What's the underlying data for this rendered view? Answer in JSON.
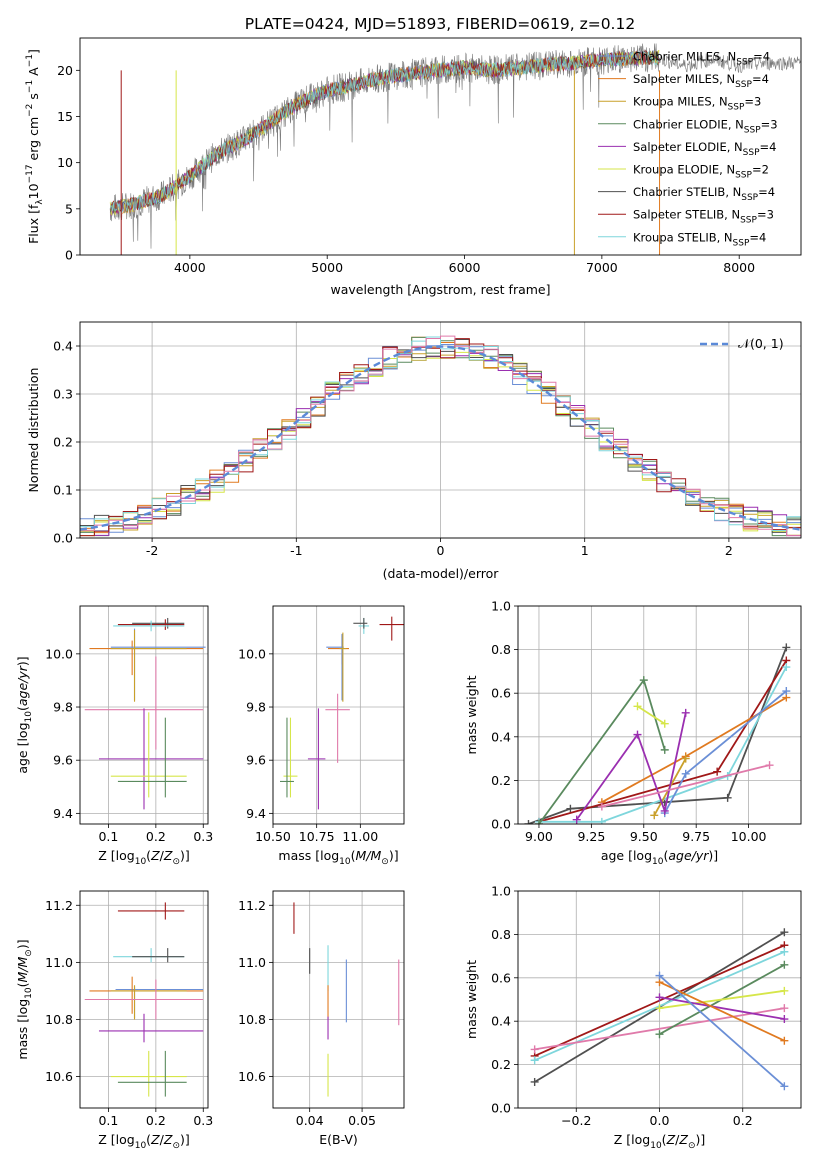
{
  "figure_title": "PLATE=0424, MJD=51893, FIBERID=0619, z=0.12",
  "colors": {
    "Chabrier MILES": "#6b8fd6",
    "Salpeter MILES": "#e07a20",
    "Kroupa MILES": "#c9a02a",
    "Chabrier ELODIE": "#5a8a5e",
    "Salpeter ELODIE": "#9a2fb0",
    "Kroupa ELODIE": "#d6e64a",
    "Chabrier STELIB": "#505050",
    "Salpeter STELIB": "#a01818",
    "Kroupa STELIB": "#7ed6dc",
    "pink": "#e07aaa",
    "grid": "#b0b0b0",
    "normal_curve": "#5b8ad8"
  },
  "chart_data": [
    {
      "id": "spectrum",
      "type": "line",
      "title": "PLATE=0424, MJD=51893, FIBERID=0619, z=0.12",
      "xlabel": "wavelength [Angstrom, rest frame]",
      "ylabel_main": "Flux [f",
      "ylabel_sub": "λ",
      "ylabel_mid": "10",
      "ylabel_sup1": "−17",
      "ylabel_mid2": " erg cm",
      "ylabel_sup2": "−2",
      "ylabel_mid3": " s",
      "ylabel_sup3": "−1",
      "ylabel_mid4": " A",
      "ylabel_sup4": "−1",
      "ylabel_end": "]",
      "xlim": [
        3200,
        8450
      ],
      "ylim": [
        0,
        23.5
      ],
      "xticks": [
        4000,
        5000,
        6000,
        7000,
        8000
      ],
      "yticks": [
        0,
        5,
        10,
        15,
        20
      ],
      "data_trend": {
        "x": [
          3420,
          3600,
          3800,
          4000,
          4200,
          4400,
          4600,
          4800,
          5000,
          5200,
          5400,
          5600,
          5800,
          6000,
          6200,
          6400,
          6600,
          6800,
          7000,
          7200,
          7420
        ],
        "y": [
          5,
          5.5,
          6.5,
          8.5,
          11,
          12.5,
          14.5,
          16.5,
          17.8,
          18.5,
          19.2,
          19.6,
          20,
          20.3,
          20,
          20.3,
          20.6,
          20.8,
          21.1,
          21.3,
          21.4
        ]
      },
      "data_tail": {
        "x": [
          7420,
          7600,
          7800,
          8000,
          8200,
          8450
        ],
        "y": [
          21.3,
          20.5,
          21.2,
          20.5,
          20.8,
          20.8
        ]
      },
      "legend": [
        {
          "label": "Chabrier MILES, N",
          "sub": "SSP",
          "suffix": "=4",
          "model": "Chabrier MILES"
        },
        {
          "label": "Salpeter MILES, N",
          "sub": "SSP",
          "suffix": "=4",
          "model": "Salpeter MILES"
        },
        {
          "label": "Kroupa MILES, N",
          "sub": "SSP",
          "suffix": "=3",
          "model": "Kroupa MILES"
        },
        {
          "label": "Chabrier ELODIE, N",
          "sub": "SSP",
          "suffix": "=3",
          "model": "Chabrier ELODIE"
        },
        {
          "label": "Salpeter ELODIE, N",
          "sub": "SSP",
          "suffix": "=4",
          "model": "Salpeter ELODIE"
        },
        {
          "label": "Kroupa ELODIE, N",
          "sub": "SSP",
          "suffix": "=2",
          "model": "Kroupa ELODIE"
        },
        {
          "label": "Chabrier STELIB, N",
          "sub": "SSP",
          "suffix": "=4",
          "model": "Chabrier STELIB"
        },
        {
          "label": "Salpeter STELIB, N",
          "sub": "SSP",
          "suffix": "=3",
          "model": "Salpeter STELIB"
        },
        {
          "label": "Kroupa STELIB, N",
          "sub": "SSP",
          "suffix": "=4",
          "model": "Kroupa STELIB"
        }
      ]
    },
    {
      "id": "residuals",
      "type": "histogram",
      "xlabel": "(data-model)/error",
      "ylabel": "Normed distribution",
      "xlim": [
        -2.5,
        2.5
      ],
      "ylim": [
        0,
        0.45
      ],
      "xticks": [
        -2,
        -1,
        0,
        1,
        2
      ],
      "yticks": [
        0.0,
        0.1,
        0.2,
        0.3,
        0.4
      ],
      "legend_label": "𝒩(0, 1)",
      "bin_width": 0.1
    },
    {
      "id": "z-age",
      "type": "scatter",
      "xlabel": "Z [log",
      "xlabel_sub": "10",
      "xlabel_rest": "(Z/Z",
      "xlabel_sun": "⊙",
      "xlabel_end": ")]",
      "ylabel": "age  [log",
      "ylabel_sub": "10",
      "ylabel_rest": "(age/yr)]",
      "xlim": [
        0.04,
        0.31
      ],
      "ylim": [
        9.36,
        10.18
      ],
      "xticks": [
        0.1,
        0.2,
        0.3
      ],
      "yticks": [
        9.4,
        9.6,
        9.8,
        10.0
      ],
      "points": [
        {
          "model": "Chabrier STELIB",
          "x": 0.225,
          "y": 10.115,
          "xerr": [
            0.075,
            0.035
          ],
          "yerr": [
            0.02,
            0.02
          ]
        },
        {
          "model": "Salpeter STELIB",
          "x": 0.22,
          "y": 10.11,
          "xerr": [
            0.1,
            0.04
          ],
          "yerr": [
            0.02,
            0.02
          ]
        },
        {
          "model": "Kroupa STELIB",
          "x": 0.19,
          "y": 10.105,
          "xerr": [
            0.08,
            0.07
          ],
          "yerr": [
            0.02,
            0.02
          ]
        },
        {
          "model": "Salpeter MILES",
          "x": 0.15,
          "y": 10.02,
          "xerr": [
            0.09,
            0.15
          ],
          "yerr": [
            0.1,
            0.03
          ]
        },
        {
          "model": "Chabrier MILES",
          "x": 0.155,
          "y": 10.025,
          "xerr": [
            0.05,
            0.15
          ],
          "yerr": [
            0.2,
            0.07
          ]
        },
        {
          "model": "Kroupa MILES",
          "x": 0.155,
          "y": 10.02,
          "xerr": [
            0.05,
            0.11
          ],
          "yerr": [
            0.2,
            0.07
          ]
        },
        {
          "model": "pink",
          "x": 0.2,
          "y": 9.79,
          "xerr": [
            0.15,
            0.1
          ],
          "yerr": [
            0.15,
            0.2
          ]
        },
        {
          "model": "Salpeter ELODIE",
          "x": 0.175,
          "y": 9.605,
          "xerr": [
            0.095,
            0.125
          ],
          "yerr": [
            0.19,
            0.19
          ]
        },
        {
          "model": "Kroupa ELODIE",
          "x": 0.185,
          "y": 9.54,
          "xerr": [
            0.08,
            0.08
          ],
          "yerr": [
            0.08,
            0.24
          ]
        },
        {
          "model": "Chabrier ELODIE",
          "x": 0.22,
          "y": 9.52,
          "xerr": [
            0.1,
            0.045
          ],
          "yerr": [
            0.06,
            0.24
          ]
        }
      ]
    },
    {
      "id": "mass-age",
      "type": "scatter",
      "xlabel": "mass [log",
      "xlabel_sub": "10",
      "xlabel_rest": "(M/M",
      "xlabel_sun": "⊙",
      "xlabel_end": ")]",
      "xlim": [
        10.5,
        11.25
      ],
      "ylim": [
        9.36,
        10.18
      ],
      "xticks": [
        10.5,
        10.75,
        11.0
      ],
      "xtick_labels": [
        "10.50",
        "10.75",
        "11.00"
      ],
      "yticks": [
        9.4,
        9.6,
        9.8,
        10.0
      ],
      "points": [
        {
          "model": "Salpeter STELIB",
          "x": 11.18,
          "y": 10.11,
          "xerr": [
            0.07,
            0.07
          ],
          "yerr": [
            0.06,
            0.03
          ]
        },
        {
          "model": "Kroupa STELIB",
          "x": 11.02,
          "y": 10.105,
          "xerr": [
            0.03,
            0.03
          ],
          "yerr": [
            0.03,
            0.03
          ]
        },
        {
          "model": "Chabrier STELIB",
          "x": 11.02,
          "y": 10.115,
          "xerr": [
            0.06,
            0.02
          ],
          "yerr": [
            0.02,
            0.02
          ]
        },
        {
          "model": "Salpeter MILES",
          "x": 10.895,
          "y": 10.02,
          "xerr": [
            0.08,
            0.04
          ],
          "yerr": [
            0.06,
            0.05
          ]
        },
        {
          "model": "Chabrier MILES",
          "x": 10.895,
          "y": 10.025,
          "xerr": [
            0.09,
            0.01
          ],
          "yerr": [
            0.2,
            0.05
          ]
        },
        {
          "model": "Kroupa MILES",
          "x": 10.9,
          "y": 10.02,
          "xerr": [
            0.02,
            0.02
          ],
          "yerr": [
            0.2,
            0.06
          ]
        },
        {
          "model": "pink",
          "x": 10.87,
          "y": 9.79,
          "xerr": [
            0.07,
            0.07
          ],
          "yerr": [
            0.2,
            0.06
          ]
        },
        {
          "model": "Salpeter ELODIE",
          "x": 10.76,
          "y": 9.605,
          "xerr": [
            0.06,
            0.04
          ],
          "yerr": [
            0.19,
            0.19
          ]
        },
        {
          "model": "Kroupa ELODIE",
          "x": 10.6,
          "y": 9.54,
          "xerr": [
            0.04,
            0.04
          ],
          "yerr": [
            0.08,
            0.22
          ]
        },
        {
          "model": "Chabrier ELODIE",
          "x": 10.58,
          "y": 9.52,
          "xerr": [
            0.04,
            0.04
          ],
          "yerr": [
            0.06,
            0.24
          ]
        }
      ]
    },
    {
      "id": "age-weight",
      "type": "line",
      "xlabel": "age  [log",
      "xlabel_sub": "10",
      "xlabel_rest": "(age/yr)]",
      "ylabel": "mass weight",
      "xlim": [
        8.9,
        10.25
      ],
      "ylim": [
        0,
        1.0
      ],
      "xticks": [
        9.0,
        9.25,
        9.5,
        9.75,
        10.0
      ],
      "xtick_labels": [
        "9.00",
        "9.25",
        "9.50",
        "9.75",
        "10.00"
      ],
      "yticks": [
        0.0,
        0.2,
        0.4,
        0.6,
        0.8,
        1.0
      ],
      "series": [
        {
          "model": "Chabrier STELIB",
          "x": [
            8.95,
            9.15,
            9.6,
            9.9,
            10.18
          ],
          "y": [
            0.0,
            0.07,
            0.1,
            0.12,
            0.81
          ]
        },
        {
          "model": "Salpeter STELIB",
          "x": [
            9.0,
            9.85,
            10.18
          ],
          "y": [
            0.01,
            0.24,
            0.75
          ]
        },
        {
          "model": "Kroupa STELIB",
          "x": [
            9.0,
            9.3,
            9.9,
            10.18
          ],
          "y": [
            0.01,
            0.01,
            0.22,
            0.72
          ]
        },
        {
          "model": "Salpeter MILES",
          "x": [
            9.3,
            9.7,
            10.18
          ],
          "y": [
            0.1,
            0.31,
            0.58
          ]
        },
        {
          "model": "Chabrier MILES",
          "x": [
            9.6,
            9.7,
            10.18
          ],
          "y": [
            0.05,
            0.23,
            0.61
          ]
        },
        {
          "model": "Kroupa MILES",
          "x": [
            9.55,
            9.7
          ],
          "y": [
            0.04,
            0.3
          ]
        },
        {
          "model": "Chabrier ELODIE",
          "x": [
            9.0,
            9.5,
            9.6
          ],
          "y": [
            0.0,
            0.66,
            0.34
          ]
        },
        {
          "model": "Salpeter ELODIE",
          "x": [
            9.18,
            9.47,
            9.6,
            9.7
          ],
          "y": [
            0.02,
            0.41,
            0.06,
            0.51
          ]
        },
        {
          "model": "Kroupa ELODIE",
          "x": [
            9.47,
            9.6
          ],
          "y": [
            0.54,
            0.46
          ]
        },
        {
          "model": "pink",
          "x": [
            9.3,
            10.1
          ],
          "y": [
            0.08,
            0.27
          ]
        }
      ]
    },
    {
      "id": "mass-z",
      "type": "scatter",
      "xlabel": "Z [log",
      "xlabel_sub": "10",
      "xlabel_rest": "(Z/Z",
      "xlabel_sun": "⊙",
      "xlabel_end": ")]",
      "ylabel": "mass [log",
      "ylabel_sub": "10",
      "ylabel_rest": "(M/M",
      "ylabel_sun": "⊙",
      "ylabel_end": ")]",
      "xlim": [
        0.04,
        0.31
      ],
      "ylim": [
        10.49,
        11.25
      ],
      "xticks": [
        0.1,
        0.2,
        0.3
      ],
      "yticks": [
        10.6,
        10.8,
        11.0,
        11.2
      ],
      "points": [
        {
          "model": "Salpeter STELIB",
          "x": 0.22,
          "y": 11.18,
          "xerr": [
            0.1,
            0.04
          ],
          "yerr": [
            0.03,
            0.03
          ]
        },
        {
          "model": "Kroupa STELIB",
          "x": 0.19,
          "y": 11.02,
          "xerr": [
            0.08,
            0.07
          ],
          "yerr": [
            0.02,
            0.03
          ]
        },
        {
          "model": "Chabrier STELIB",
          "x": 0.225,
          "y": 11.02,
          "xerr": [
            0.075,
            0.035
          ],
          "yerr": [
            0.02,
            0.03
          ]
        },
        {
          "model": "Chabrier MILES",
          "x": 0.155,
          "y": 10.905,
          "xerr": [
            0.04,
            0.145
          ],
          "yerr": [
            0.1,
            0.01
          ]
        },
        {
          "model": "Salpeter MILES",
          "x": 0.15,
          "y": 10.9,
          "xerr": [
            0.09,
            0.15
          ],
          "yerr": [
            0.08,
            0.05
          ]
        },
        {
          "model": "Kroupa MILES",
          "x": 0.155,
          "y": 10.9,
          "xerr": [
            0.05,
            0.11
          ],
          "yerr": [
            0.1,
            0.02
          ]
        },
        {
          "model": "pink",
          "x": 0.2,
          "y": 10.87,
          "xerr": [
            0.15,
            0.1
          ],
          "yerr": [
            0.07,
            0.07
          ]
        },
        {
          "model": "Salpeter ELODIE",
          "x": 0.175,
          "y": 10.76,
          "xerr": [
            0.095,
            0.125
          ],
          "yerr": [
            0.04,
            0.06
          ]
        },
        {
          "model": "Kroupa ELODIE",
          "x": 0.185,
          "y": 10.6,
          "xerr": [
            0.08,
            0.08
          ],
          "yerr": [
            0.07,
            0.09
          ]
        },
        {
          "model": "Chabrier ELODIE",
          "x": 0.22,
          "y": 10.58,
          "xerr": [
            0.1,
            0.045
          ],
          "yerr": [
            0.05,
            0.11
          ]
        }
      ]
    },
    {
      "id": "mass-ebv",
      "type": "scatter",
      "xlabel": "E(B-V)",
      "xlim": [
        0.033,
        0.058
      ],
      "ylim": [
        10.49,
        11.25
      ],
      "xticks": [
        0.04,
        0.05
      ],
      "xtick_labels": [
        "0.04",
        "0.05"
      ],
      "yticks": [
        10.6,
        10.8,
        11.0,
        11.2
      ],
      "points": [
        {
          "model": "Salpeter STELIB",
          "x": 0.037,
          "y": 11.18,
          "yerr": [
            0.08,
            0.03
          ]
        },
        {
          "model": "Chabrier STELIB",
          "x": 0.04,
          "y": 11.0,
          "yerr": [
            0.04,
            0.05
          ]
        },
        {
          "model": "Kroupa STELIB",
          "x": 0.0435,
          "y": 11.0,
          "yerr": [
            0.1,
            0.06
          ]
        },
        {
          "model": "Salpeter MILES",
          "x": 0.0435,
          "y": 10.88,
          "yerr": [
            0.08,
            0.04
          ]
        },
        {
          "model": "Salpeter ELODIE",
          "x": 0.0435,
          "y": 10.79,
          "yerr": [
            0.06,
            0.02
          ]
        },
        {
          "model": "Kroupa ELODIE",
          "x": 0.0435,
          "y": 10.6,
          "yerr": [
            0.07,
            0.08
          ]
        },
        {
          "model": "Chabrier MILES",
          "x": 0.047,
          "y": 10.88,
          "yerr": [
            0.09,
            0.13
          ]
        },
        {
          "model": "pink",
          "x": 0.057,
          "y": 10.9,
          "yerr": [
            0.12,
            0.11
          ]
        }
      ]
    },
    {
      "id": "z-weight",
      "type": "line",
      "xlabel": "Z [log",
      "xlabel_sub": "10",
      "xlabel_rest": "(Z/Z",
      "xlabel_sun": "⊙",
      "xlabel_end": ")]",
      "ylabel": "mass weight",
      "xlim": [
        -0.34,
        0.34
      ],
      "ylim": [
        0,
        1.0
      ],
      "xticks": [
        -0.2,
        0.0,
        0.2
      ],
      "xtick_labels": [
        "−0.2",
        "0.0",
        "0.2"
      ],
      "yticks": [
        0.0,
        0.2,
        0.4,
        0.6,
        0.8,
        1.0
      ],
      "series": [
        {
          "model": "Chabrier STELIB",
          "x": [
            -0.3,
            0.3
          ],
          "y": [
            0.12,
            0.81
          ]
        },
        {
          "model": "Salpeter STELIB",
          "x": [
            -0.3,
            0.3
          ],
          "y": [
            0.24,
            0.75
          ]
        },
        {
          "model": "Kroupa STELIB",
          "x": [
            -0.3,
            0.3
          ],
          "y": [
            0.22,
            0.72
          ]
        },
        {
          "model": "pink",
          "x": [
            -0.3,
            0.3
          ],
          "y": [
            0.27,
            0.46
          ]
        },
        {
          "model": "Chabrier ELODIE",
          "x": [
            0.0,
            0.3
          ],
          "y": [
            0.34,
            0.66
          ]
        },
        {
          "model": "Kroupa ELODIE",
          "x": [
            0.0,
            0.3
          ],
          "y": [
            0.46,
            0.54
          ]
        },
        {
          "model": "Salpeter ELODIE",
          "x": [
            0.0,
            0.3
          ],
          "y": [
            0.51,
            0.41
          ]
        },
        {
          "model": "Salpeter MILES",
          "x": [
            0.0,
            0.3
          ],
          "y": [
            0.58,
            0.31
          ]
        },
        {
          "model": "Chabrier MILES",
          "x": [
            0.0,
            0.3
          ],
          "y": [
            0.61,
            0.1
          ]
        }
      ]
    }
  ]
}
